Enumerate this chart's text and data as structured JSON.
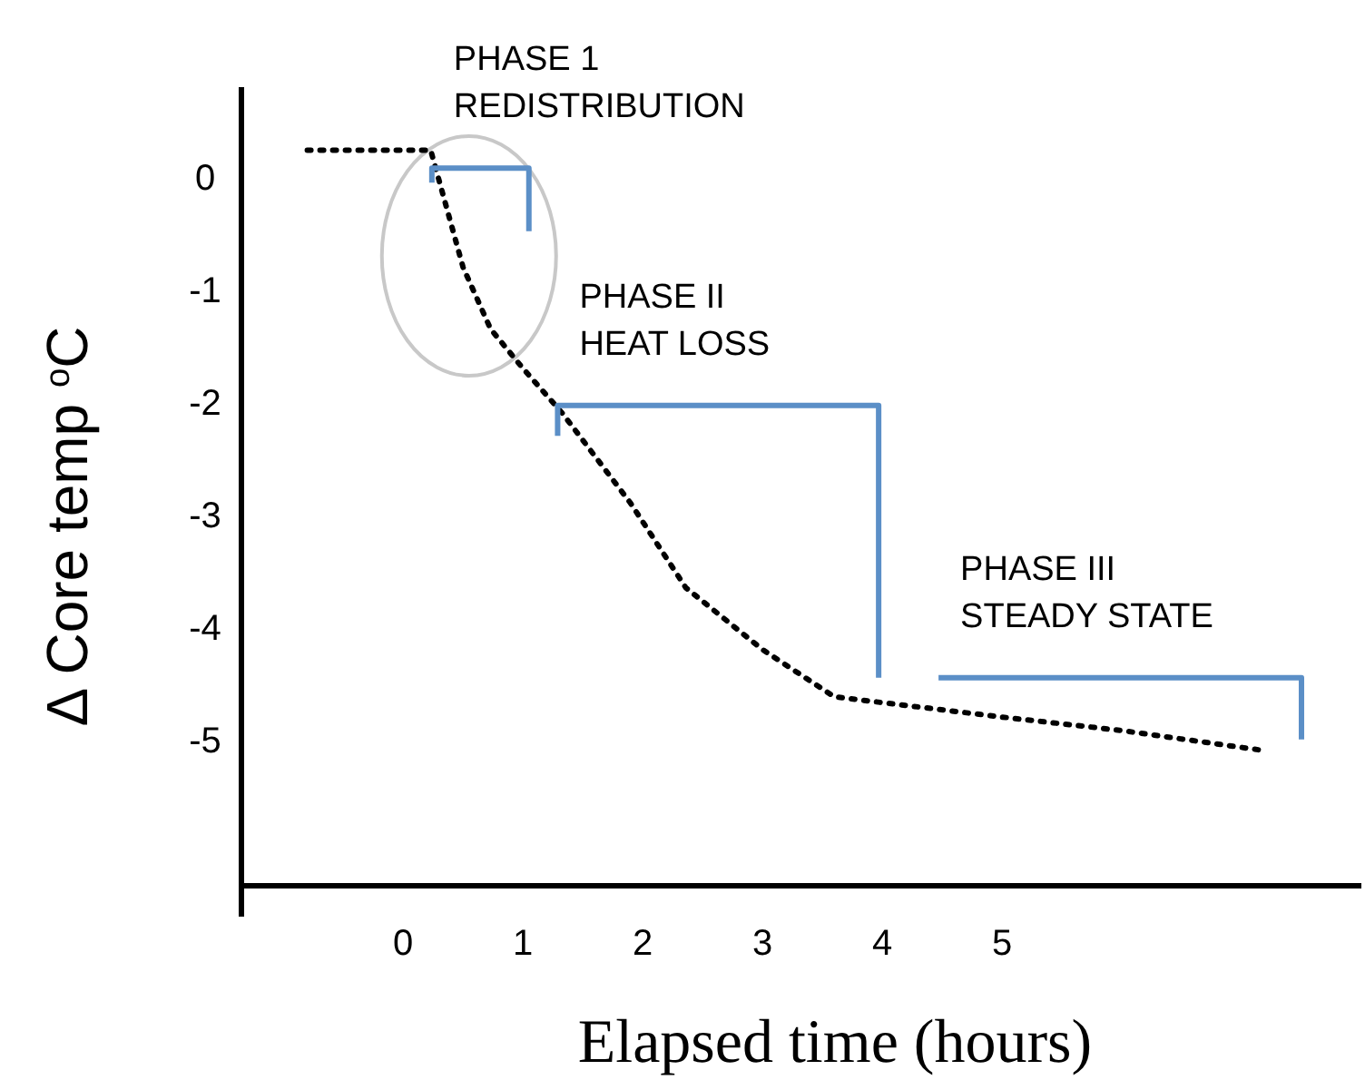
{
  "chart_data": {
    "type": "line",
    "xlabel": "Elapsed time (hours)",
    "ylabel": "Δ Core temp $^{o}$C",
    "xlim": [
      -1.35,
      8
    ],
    "ylim": [
      -6.3,
      0.8
    ],
    "xticks": [
      0,
      1,
      2,
      3,
      4,
      5
    ],
    "yticks": [
      0,
      -1,
      -2,
      -3,
      -4,
      -5
    ],
    "grid": false,
    "series": [
      {
        "color": "#000000",
        "line_style": "dotted",
        "x": [
          -0.8,
          0.23,
          0.5,
          0.73,
          1.0,
          1.33,
          1.9,
          2.36,
          3.0,
          3.6,
          5.0,
          6.0,
          7.2
        ],
        "values": [
          0.24,
          0.24,
          -0.8,
          -1.35,
          -1.7,
          -2.1,
          -2.9,
          -3.65,
          -4.2,
          -4.62,
          -4.8,
          -4.92,
          -5.1
        ]
      },
      {
        "color": "#5b8fc7",
        "line_style": "solid",
        "x": [
          0.24,
          0.24,
          1.05,
          1.05
        ],
        "values": [
          -0.05,
          0.08,
          0.08,
          -0.48
        ]
      },
      {
        "color": "#5b8fc7",
        "line_style": "solid",
        "x": [
          1.29,
          1.29,
          3.97,
          3.97
        ],
        "values": [
          -2.3,
          -2.03,
          -2.03,
          -4.45
        ]
      },
      {
        "color": "#5b8fc7",
        "line_style": "solid",
        "x": [
          4.47,
          7.5,
          7.5
        ],
        "values": [
          -4.45,
          -4.45,
          -5.0
        ]
      }
    ],
    "annotations": [
      "PHASE 1\nREDISTRIBUTION",
      "PHASE II\nHEAT LOSS",
      "PHASE III\nSTEADY STATE"
    ]
  }
}
